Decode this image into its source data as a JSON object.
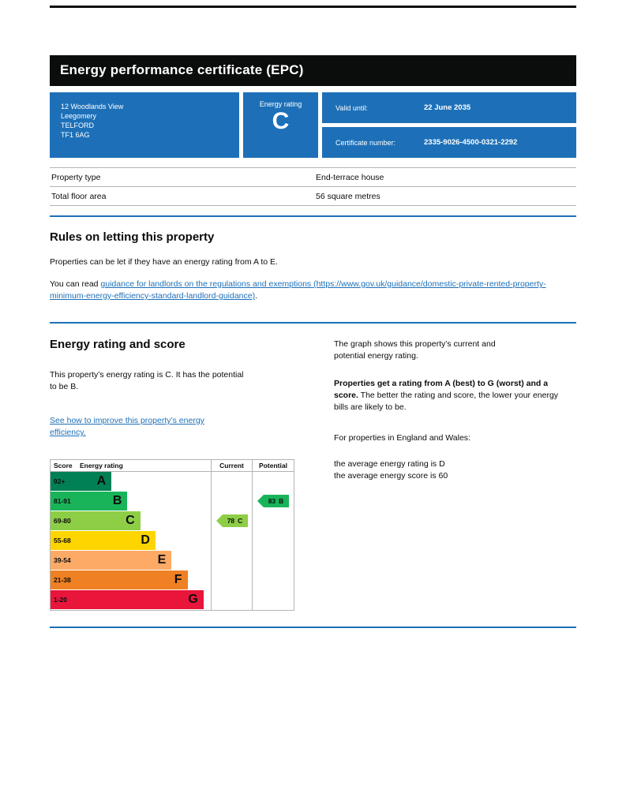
{
  "page": {
    "title": "Energy performance certificate (EPC)"
  },
  "summary": {
    "address_lines": [
      "12 Woodlands View",
      "Leegomery",
      "TELFORD",
      "TF1 6AG"
    ],
    "energy_rating_label": "Energy rating",
    "energy_rating": "C",
    "valid_until_label": "Valid until:",
    "valid_until_value": "22 June 2035",
    "certificate_number_label": "Certificate number:",
    "certificate_number_value": "2335-9026-4500-0321-2292"
  },
  "property_details": {
    "rows": [
      {
        "label": "Property type",
        "value": "End-terrace house"
      },
      {
        "label": "Total floor area",
        "value": "56 square metres"
      }
    ]
  },
  "rules_section": {
    "heading": "Rules on letting this property",
    "paragraph1": "Properties can be let if they have an energy rating from A to E.",
    "paragraph2_prefix": "You can read ",
    "guidance_link_text": "guidance for landlords on the regulations and exemptions (https://www.gov.uk/guidance/domestic-private-rented-property-minimum-energy-efficiency-standard-landlord-guidance)",
    "paragraph2_suffix": "."
  },
  "rating_section": {
    "heading": "Energy rating and score",
    "intro": "This property’s energy rating is C. It has the potential to be B.",
    "improve_link_text": "See how to improve this property’s energy efficiency.",
    "graph_intro": "The graph shows this property’s current and potential energy rating.",
    "explain_bold": "Properties get a rating from A (best) to G (worst) and a score.",
    "explain_rest": " The better the rating and score, the lower your energy bills are likely to be.",
    "england_wales": "For properties in England and Wales:",
    "average_rating_line": "the average energy rating is D",
    "average_score_line": "the average energy score is 60"
  },
  "chart_data": {
    "type": "bar",
    "title": "Energy rating and score",
    "headers": {
      "score": "Score",
      "rating": "Energy rating",
      "current": "Current",
      "potential": "Potential"
    },
    "bands": [
      {
        "range": "92+",
        "letter": "A",
        "color": "#008054",
        "width_pct": 38
      },
      {
        "range": "81-91",
        "letter": "B",
        "color": "#19b459",
        "width_pct": 48
      },
      {
        "range": "69-80",
        "letter": "C",
        "color": "#8dce46",
        "width_pct": 56
      },
      {
        "range": "55-68",
        "letter": "D",
        "color": "#ffd500",
        "width_pct": 65.5
      },
      {
        "range": "39-54",
        "letter": "E",
        "color": "#fcaa65",
        "width_pct": 75.5
      },
      {
        "range": "21-38",
        "letter": "F",
        "color": "#ef8023",
        "width_pct": 85.5
      },
      {
        "range": "1-20",
        "letter": "G",
        "color": "#e9153b",
        "width_pct": 95.5
      }
    ],
    "current": {
      "label": "Current",
      "score": "78",
      "letter": "C",
      "color": "#8dce46",
      "band_index": 2
    },
    "potential": {
      "label": "Potential",
      "score": "83",
      "letter": "B",
      "color": "#19b459",
      "band_index": 1
    }
  },
  "colors": {
    "header_bg": "#0b0c0c",
    "panel_blue": "#1d70b8",
    "link_blue": "#1d70b8",
    "divider_blue": "#1d70b8",
    "border_grey": "#b1b4b6"
  }
}
